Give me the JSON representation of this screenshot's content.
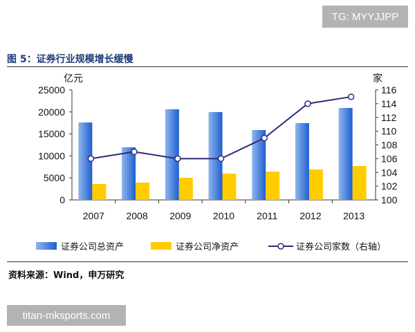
{
  "watermark_top": "TG: MYYJJPP",
  "watermark_bottom": "titan-mksports.com",
  "figure_title": "图 5：证券行业规模增长缓慢",
  "source": "资料来源：Wind，申万研究",
  "chart_data": {
    "type": "bar",
    "categories": [
      "2007",
      "2008",
      "2009",
      "2010",
      "2011",
      "2012",
      "2013"
    ],
    "left_axis": {
      "unit": "亿元",
      "ylim": [
        0,
        25000
      ],
      "ticks": [
        0,
        5000,
        10000,
        15000,
        20000,
        25000
      ]
    },
    "right_axis": {
      "unit": "家",
      "ylim": [
        100,
        116
      ],
      "ticks": [
        100,
        102,
        104,
        106,
        108,
        110,
        112,
        114,
        116
      ]
    },
    "series": [
      {
        "name": "证券公司总资产",
        "type": "bar",
        "axis": "left",
        "color": "#2f6fd0",
        "values": [
          17600,
          11950,
          20600,
          19970,
          15880,
          17450,
          20900
        ]
      },
      {
        "name": "证券公司净资产",
        "type": "bar",
        "axis": "left",
        "color": "#ffcc00",
        "values": [
          3620,
          3930,
          5030,
          5970,
          6440,
          6920,
          7700
        ]
      },
      {
        "name": "证券公司家数（右轴）",
        "type": "line",
        "axis": "right",
        "color": "#2b2a7a",
        "values": [
          106,
          107,
          106,
          106,
          109,
          114,
          115
        ]
      }
    ],
    "grid": false,
    "legend": "bottom"
  }
}
